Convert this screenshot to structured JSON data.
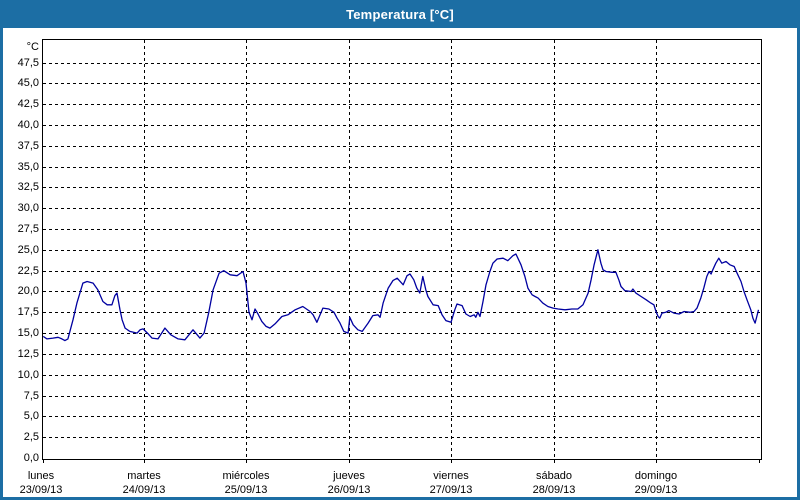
{
  "window": {
    "title": "Temperatura [°C]"
  },
  "colors": {
    "frame": "#1C6EA4",
    "title_text": "#FFFFFF",
    "plot_background": "#FFFFFF",
    "grid": "#000000",
    "line": "#0000A0",
    "label_text": "#000000"
  },
  "chart_data": {
    "type": "line",
    "title": "Temperatura [°C]",
    "grid": "dashed",
    "legend_position": "none",
    "y_axis": {
      "unit_label": "°C",
      "min": 0,
      "max": 50,
      "tick_step": 2.5,
      "tick_labels": [
        "0,0",
        "2,5",
        "5,0",
        "7,5",
        "10,0",
        "12,5",
        "15,0",
        "17,5",
        "20,0",
        "22,5",
        "25,0",
        "27,5",
        "30,0",
        "32,5",
        "35,0",
        "37,5",
        "40,0",
        "42,5",
        "45,0",
        "47,5"
      ]
    },
    "x_axis": {
      "span_hours": 168,
      "days": [
        {
          "name": "lunes",
          "date": "23/09/13"
        },
        {
          "name": "martes",
          "date": "24/09/13"
        },
        {
          "name": "miércoles",
          "date": "25/09/13"
        },
        {
          "name": "jueves",
          "date": "26/09/13"
        },
        {
          "name": "viernes",
          "date": "27/09/13"
        },
        {
          "name": "sábado",
          "date": "28/09/13"
        },
        {
          "name": "domingo",
          "date": "29/09/13"
        }
      ]
    },
    "series": [
      {
        "name": "Temperatura",
        "color": "#0000A0",
        "points_hours_celsius": [
          [
            0.5,
            14.6
          ],
          [
            1.4,
            14.3
          ],
          [
            2.8,
            14.4
          ],
          [
            4.0,
            14.5
          ],
          [
            4.9,
            14.3
          ],
          [
            5.6,
            14.1
          ],
          [
            6.3,
            14.3
          ],
          [
            7.5,
            16.6
          ],
          [
            8.4,
            18.6
          ],
          [
            9.1,
            19.8
          ],
          [
            9.8,
            21.0
          ],
          [
            10.8,
            21.2
          ],
          [
            12.2,
            21.0
          ],
          [
            13.3,
            20.2
          ],
          [
            14.5,
            18.8
          ],
          [
            15.5,
            18.4
          ],
          [
            16.6,
            18.4
          ],
          [
            17.3,
            19.5
          ],
          [
            17.8,
            19.8
          ],
          [
            18.5,
            17.8
          ],
          [
            19.0,
            16.6
          ],
          [
            19.7,
            15.6
          ],
          [
            20.8,
            15.2
          ],
          [
            22.5,
            15.0
          ],
          [
            23.2,
            15.4
          ],
          [
            23.9,
            15.5
          ],
          [
            25.1,
            14.9
          ],
          [
            26.0,
            14.4
          ],
          [
            27.4,
            14.3
          ],
          [
            29.0,
            15.6
          ],
          [
            30.4,
            14.8
          ],
          [
            32.1,
            14.3
          ],
          [
            33.7,
            14.2
          ],
          [
            35.6,
            15.4
          ],
          [
            37.2,
            14.4
          ],
          [
            38.2,
            15.0
          ],
          [
            39.3,
            17.5
          ],
          [
            40.3,
            20.2
          ],
          [
            41.7,
            22.2
          ],
          [
            42.8,
            22.5
          ],
          [
            44.3,
            22.0
          ],
          [
            45.9,
            21.9
          ],
          [
            47.3,
            22.4
          ],
          [
            48.0,
            21.0
          ],
          [
            48.7,
            17.5
          ],
          [
            49.4,
            16.6
          ],
          [
            50.1,
            17.9
          ],
          [
            50.8,
            17.3
          ],
          [
            51.7,
            16.4
          ],
          [
            52.7,
            15.8
          ],
          [
            53.6,
            15.6
          ],
          [
            54.8,
            16.1
          ],
          [
            56.4,
            17.0
          ],
          [
            57.8,
            17.2
          ],
          [
            59.5,
            17.8
          ],
          [
            61.3,
            18.2
          ],
          [
            63.0,
            17.6
          ],
          [
            63.7,
            17.2
          ],
          [
            64.6,
            16.3
          ],
          [
            66.0,
            18.0
          ],
          [
            67.4,
            17.9
          ],
          [
            68.6,
            17.5
          ],
          [
            69.3,
            16.8
          ],
          [
            70.0,
            16.2
          ],
          [
            70.9,
            15.2
          ],
          [
            71.9,
            15.0
          ],
          [
            72.3,
            16.9
          ],
          [
            73.1,
            16.0
          ],
          [
            74.2,
            15.4
          ],
          [
            75.2,
            15.2
          ],
          [
            76.6,
            16.2
          ],
          [
            77.7,
            17.1
          ],
          [
            78.9,
            17.2
          ],
          [
            79.4,
            16.9
          ],
          [
            80.1,
            18.6
          ],
          [
            81.3,
            20.4
          ],
          [
            82.4,
            21.3
          ],
          [
            83.4,
            21.6
          ],
          [
            84.8,
            20.8
          ],
          [
            85.7,
            21.9
          ],
          [
            86.4,
            22.1
          ],
          [
            87.3,
            21.4
          ],
          [
            88.0,
            20.4
          ],
          [
            88.7,
            19.8
          ],
          [
            89.4,
            21.8
          ],
          [
            90.1,
            20.2
          ],
          [
            90.6,
            19.4
          ],
          [
            91.8,
            18.4
          ],
          [
            93.0,
            18.3
          ],
          [
            93.9,
            17.2
          ],
          [
            94.8,
            16.5
          ],
          [
            96.0,
            16.3
          ],
          [
            96.9,
            17.8
          ],
          [
            97.4,
            18.5
          ],
          [
            98.6,
            18.3
          ],
          [
            99.5,
            17.3
          ],
          [
            100.5,
            17.0
          ],
          [
            101.4,
            17.2
          ],
          [
            101.8,
            16.9
          ],
          [
            102.3,
            17.5
          ],
          [
            102.8,
            17.0
          ],
          [
            103.5,
            18.8
          ],
          [
            104.2,
            20.8
          ],
          [
            105.1,
            22.4
          ],
          [
            105.8,
            23.4
          ],
          [
            106.8,
            23.9
          ],
          [
            108.2,
            24.0
          ],
          [
            109.3,
            23.7
          ],
          [
            110.5,
            24.3
          ],
          [
            111.2,
            24.5
          ],
          [
            112.4,
            23.2
          ],
          [
            113.3,
            21.8
          ],
          [
            114.0,
            20.4
          ],
          [
            115.0,
            19.6
          ],
          [
            115.7,
            19.4
          ],
          [
            116.4,
            19.2
          ],
          [
            117.5,
            18.6
          ],
          [
            118.7,
            18.2
          ],
          [
            119.9,
            18.0
          ],
          [
            121.1,
            17.9
          ],
          [
            122.7,
            17.8
          ],
          [
            124.3,
            17.9
          ],
          [
            125.7,
            17.9
          ],
          [
            126.9,
            18.4
          ],
          [
            128.1,
            19.8
          ],
          [
            128.8,
            21.4
          ],
          [
            129.5,
            23.2
          ],
          [
            130.4,
            25.0
          ],
          [
            131.1,
            23.4
          ],
          [
            131.6,
            22.6
          ],
          [
            132.3,
            22.4
          ],
          [
            133.7,
            22.3
          ],
          [
            134.6,
            22.3
          ],
          [
            135.3,
            21.4
          ],
          [
            135.8,
            20.6
          ],
          [
            136.7,
            20.1
          ],
          [
            138.2,
            20.0
          ],
          [
            138.6,
            20.3
          ],
          [
            139.3,
            19.8
          ],
          [
            140.5,
            19.4
          ],
          [
            141.7,
            19.0
          ],
          [
            142.8,
            18.6
          ],
          [
            143.5,
            18.4
          ],
          [
            144.0,
            17.6
          ],
          [
            144.5,
            17.0
          ],
          [
            144.9,
            16.8
          ],
          [
            145.4,
            17.4
          ],
          [
            146.3,
            17.5
          ],
          [
            147.0,
            17.7
          ],
          [
            148.2,
            17.4
          ],
          [
            149.4,
            17.3
          ],
          [
            150.6,
            17.6
          ],
          [
            152.0,
            17.5
          ],
          [
            152.9,
            17.6
          ],
          [
            153.6,
            18.0
          ],
          [
            154.5,
            19.2
          ],
          [
            155.2,
            20.4
          ],
          [
            155.9,
            21.8
          ],
          [
            156.4,
            22.4
          ],
          [
            156.9,
            22.1
          ],
          [
            157.3,
            22.6
          ],
          [
            158.0,
            23.4
          ],
          [
            158.7,
            24.0
          ],
          [
            159.4,
            23.4
          ],
          [
            160.4,
            23.6
          ],
          [
            161.3,
            23.2
          ],
          [
            162.3,
            23.0
          ],
          [
            163.0,
            22.2
          ],
          [
            163.9,
            21.2
          ],
          [
            164.6,
            20.0
          ],
          [
            165.3,
            19.0
          ],
          [
            166.2,
            17.8
          ],
          [
            166.7,
            16.8
          ],
          [
            167.2,
            16.2
          ],
          [
            167.6,
            17.0
          ],
          [
            168.0,
            17.8
          ]
        ]
      }
    ]
  }
}
